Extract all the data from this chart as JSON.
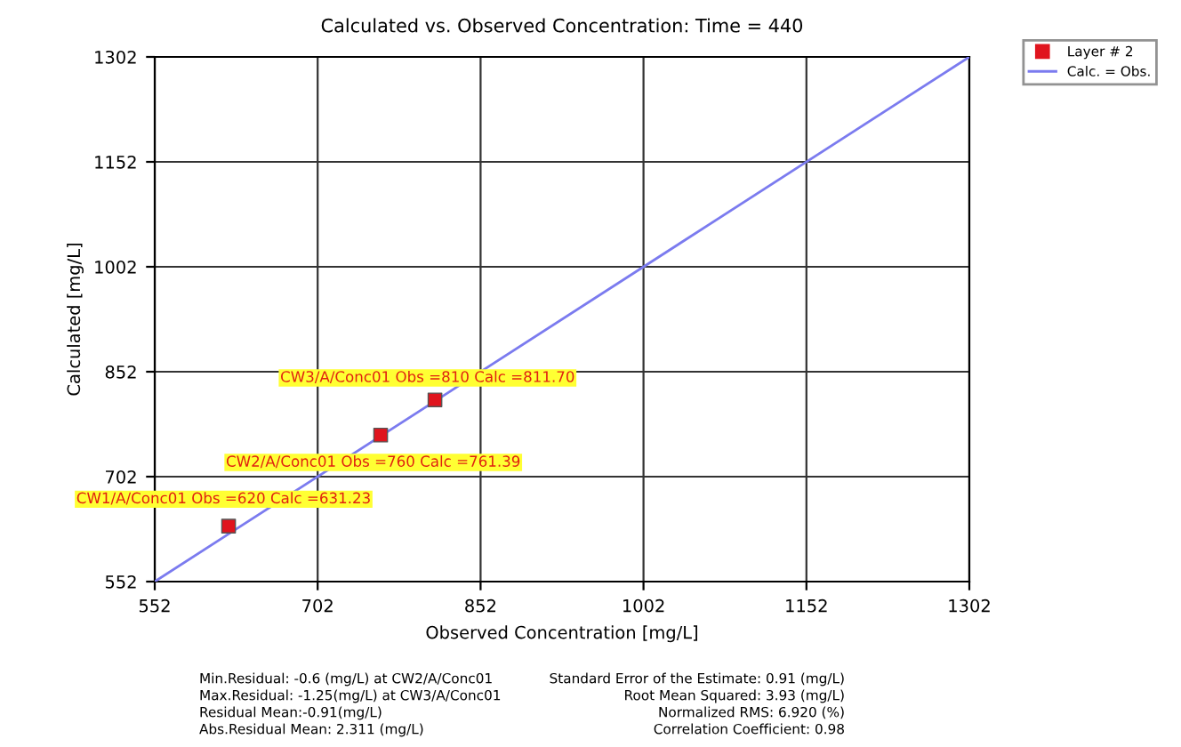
{
  "chart_data": {
    "type": "scatter",
    "title": "Calculated vs. Observed Concentration: Time = 440",
    "xlabel": "Observed Concentration [mg/L]",
    "ylabel": "Calculated [mg/L]",
    "series": [
      {
        "name": "Layer # 2",
        "color": "#e0141e",
        "marker": "square",
        "x": [
          620,
          760,
          810
        ],
        "values": [
          631.23,
          761.39,
          811.7
        ]
      },
      {
        "name": "Calc. = Obs.",
        "type": "line",
        "color": "#7b7bef",
        "marker": "none",
        "x": [
          552,
          1302
        ],
        "values": [
          552,
          1302
        ]
      }
    ],
    "annotations": [
      {
        "text": "CW1/A/Conc01 Obs =620 Calc =631.23",
        "x": 620,
        "y": 631.23
      },
      {
        "text": "CW2/A/Conc01 Obs =760 Calc =761.39",
        "x": 760,
        "y": 761.39
      },
      {
        "text": "CW3/A/Conc01 Obs =810 Calc =811.70",
        "x": 810,
        "y": 811.7
      },
      "Min.Residual: -0.6 (mg/L) at CW2/A/Conc01",
      "Max.Residual: -1.25(mg/L) at CW3/A/Conc01",
      "Residual Mean:-0.91(mg/L)",
      "Abs.Residual Mean: 2.311 (mg/L)",
      "Standard Error of the Estimate: 0.91 (mg/L)",
      "Root Mean Squared: 3.93 (mg/L)",
      "Normalized RMS: 6.920 (%)",
      "Correlation Coefficient: 0.98"
    ],
    "xlim": [
      552,
      1302
    ],
    "ylim": [
      552,
      1302
    ],
    "xticks": [
      552,
      702,
      852,
      1002,
      1152,
      1302
    ],
    "yticks": [
      552,
      702,
      852,
      1002,
      1152,
      1302
    ],
    "grid": true,
    "legend": "top right"
  }
}
